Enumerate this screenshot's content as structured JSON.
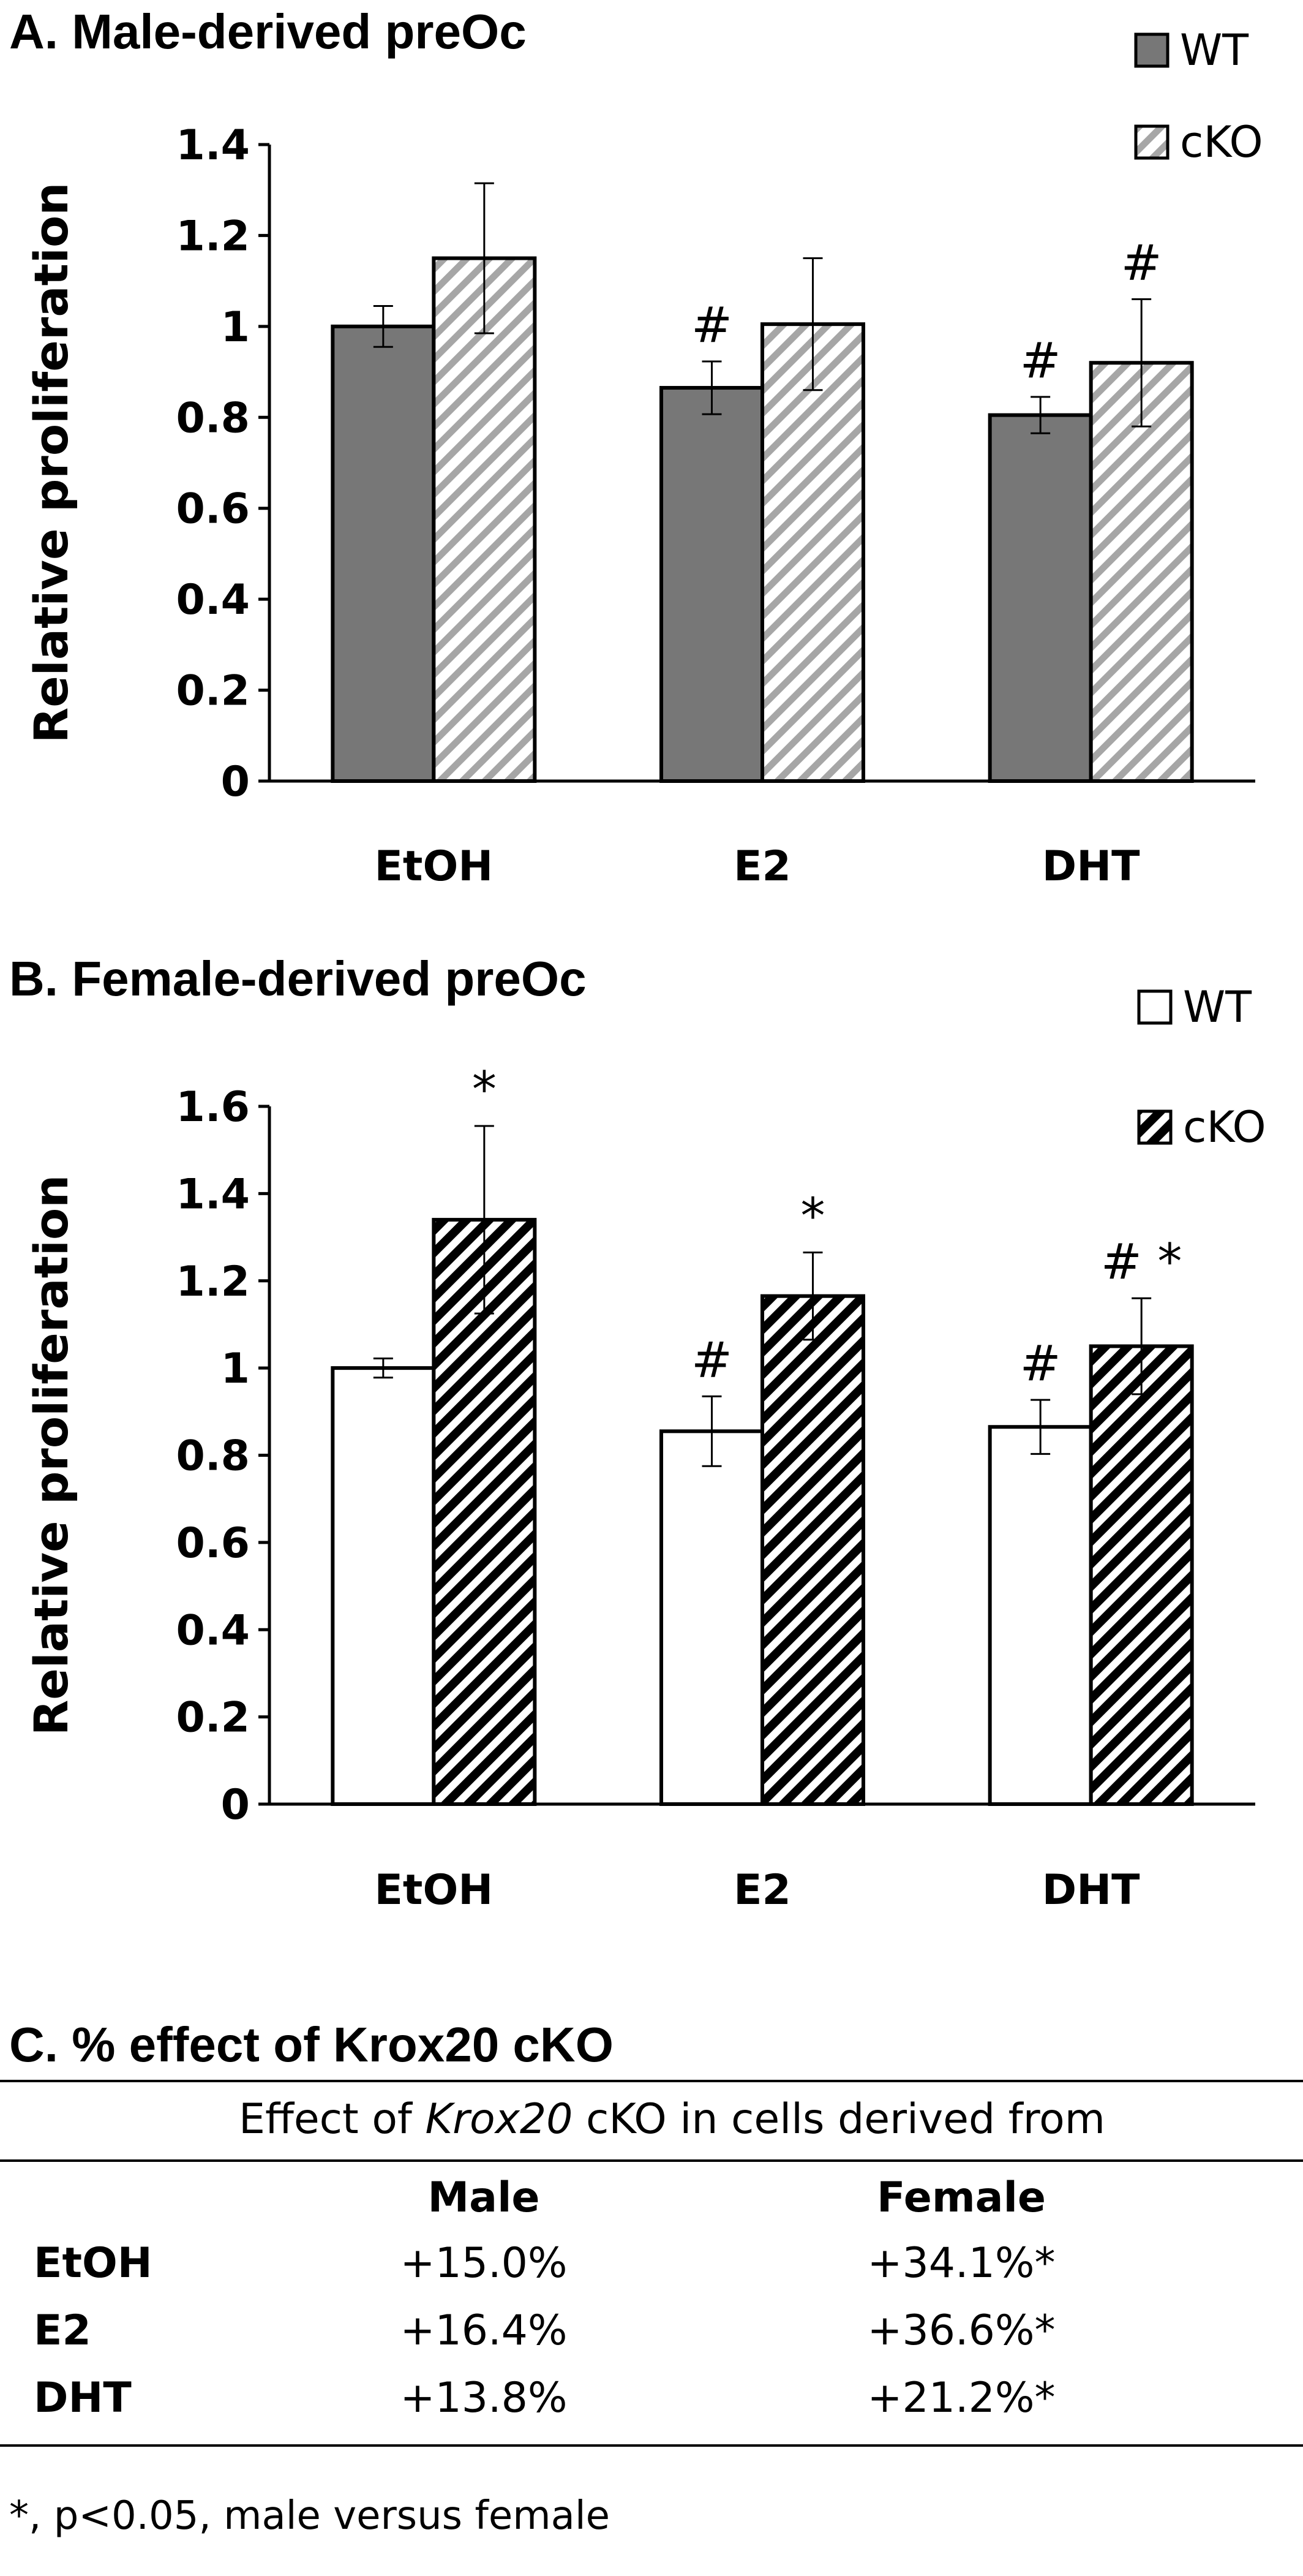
{
  "chart_data": [
    {
      "type": "bar",
      "title": "A. Male-derived preOc",
      "xlabel": "",
      "ylabel": "Relative proliferation",
      "categories": [
        "EtOH",
        "E2",
        "DHT"
      ],
      "ylim": [
        0,
        1.4
      ],
      "yticks": [
        "0",
        "0.2",
        "0.4",
        "0.6",
        "0.8",
        "1",
        "1.2",
        "1.4"
      ],
      "legend": "top-right",
      "grid": false,
      "series": [
        {
          "name": "WT",
          "fill": "#777777",
          "pattern": "solid",
          "values": [
            1.0,
            0.865,
            0.805
          ],
          "errors": [
            0.045,
            0.058,
            0.04
          ],
          "annotations": [
            "",
            "#",
            "#"
          ]
        },
        {
          "name": "cKO",
          "fill": "#a6a6a6",
          "pattern": "light-diagonal",
          "values": [
            1.15,
            1.005,
            0.92
          ],
          "errors": [
            0.165,
            0.145,
            0.14
          ],
          "annotations": [
            "",
            "",
            "#"
          ]
        }
      ]
    },
    {
      "type": "bar",
      "title": "B. Female-derived preOc",
      "xlabel": "",
      "ylabel": "Relative proliferation",
      "categories": [
        "EtOH",
        "E2",
        "DHT"
      ],
      "ylim": [
        0,
        1.6
      ],
      "yticks": [
        "0",
        "0.2",
        "0.4",
        "0.6",
        "0.8",
        "1",
        "1.2",
        "1.4",
        "1.6"
      ],
      "legend": "top-right",
      "grid": false,
      "series": [
        {
          "name": "WT",
          "fill": "#ffffff",
          "pattern": "open",
          "values": [
            1.0,
            0.855,
            0.865
          ],
          "errors": [
            0.022,
            0.08,
            0.062
          ],
          "annotations": [
            "",
            "#",
            "#"
          ]
        },
        {
          "name": "cKO",
          "fill": "#000000",
          "pattern": "dark-diagonal",
          "values": [
            1.34,
            1.165,
            1.05
          ],
          "errors": [
            0.215,
            0.1,
            0.11
          ],
          "annotations": [
            "*",
            "*",
            "# *"
          ]
        }
      ]
    }
  ],
  "table": {
    "title": "C. % effect of Krox20 cKO",
    "header_prefix": "Effect of ",
    "header_italic": "Krox20",
    "header_suffix": " cKO in cells derived from",
    "col_male": "Male",
    "col_female": "Female",
    "rows": [
      {
        "label": "EtOH",
        "male": "+15.0%",
        "female": "+34.1%*"
      },
      {
        "label": "E2",
        "male": "+16.4%",
        "female": "+36.6%*"
      },
      {
        "label": "DHT",
        "male": "+13.8%",
        "female": "+21.2%*"
      }
    ],
    "footnote": "*, p<0.05, male versus female"
  }
}
